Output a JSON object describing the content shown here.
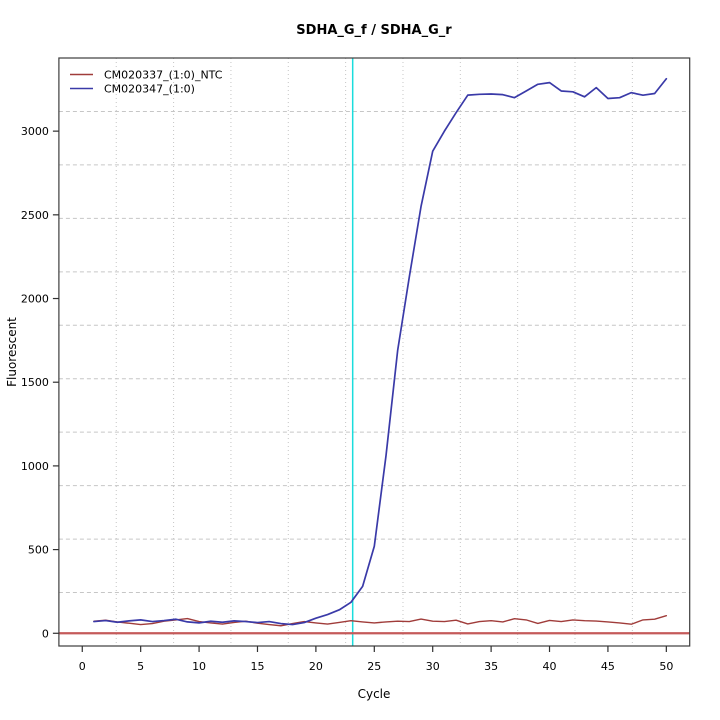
{
  "figure": {
    "background": "#ffffff",
    "box_color": "#3c3c3c",
    "tick_color": "#303030",
    "text_color": "#000000"
  },
  "chart_data": {
    "type": "line",
    "title": "SDHA_G_f / SDHA_G_r",
    "xlabel": "Cycle",
    "ylabel": "Fluorescent",
    "x_range": [
      -2,
      52
    ],
    "y_range": [
      -76,
      3437
    ],
    "x_ticks": [
      0,
      5,
      10,
      15,
      20,
      25,
      30,
      35,
      40,
      45,
      50
    ],
    "y_ticks": [
      0,
      500,
      1000,
      1500,
      2000,
      2500,
      3000
    ],
    "grid": {
      "color": "#c6c6c6",
      "x_lines": [
        2.909,
        7.818,
        12.727,
        17.636,
        22.545,
        27.455,
        32.364,
        37.273,
        42.182,
        47.091
      ],
      "y_lines": [
        243.4,
        562.7,
        882.1,
        1201.5,
        1520.8,
        1840.2,
        2159.5,
        2478.9,
        2798.3,
        3117.6
      ]
    },
    "threshold_line": {
      "x": 23.15,
      "color": "#1adddd"
    },
    "zero_line": {
      "y": 0,
      "color": "#c45a5a"
    },
    "legend_position": "top-left",
    "cycles": [
      1,
      2,
      3,
      4,
      5,
      6,
      7,
      8,
      9,
      10,
      11,
      12,
      13,
      14,
      15,
      16,
      17,
      18,
      19,
      20,
      21,
      22,
      23,
      24,
      25,
      26,
      27,
      28,
      29,
      30,
      31,
      32,
      33,
      34,
      35,
      36,
      37,
      38,
      39,
      40,
      41,
      42,
      43,
      44,
      45,
      46,
      47,
      48,
      49,
      50
    ],
    "series": [
      {
        "name": "CM020337_(1:0)_NTC",
        "color": "#a03c3a",
        "values": [
          72,
          78,
          68,
          60,
          52,
          58,
          72,
          80,
          88,
          70,
          62,
          55,
          65,
          72,
          60,
          52,
          45,
          58,
          70,
          62,
          55,
          65,
          75,
          68,
          62,
          68,
          72,
          70,
          85,
          72,
          70,
          78,
          56,
          70,
          75,
          68,
          87,
          80,
          59,
          77,
          70,
          80,
          75,
          73,
          68,
          62,
          54,
          80,
          84,
          105
        ]
      },
      {
        "name": "CM020347_(1:0)",
        "color": "#3a3aa8",
        "values": [
          70,
          76,
          66,
          74,
          80,
          70,
          76,
          84,
          68,
          62,
          72,
          66,
          74,
          70,
          64,
          70,
          58,
          52,
          64,
          90,
          112,
          140,
          185,
          280,
          520,
          1060,
          1690,
          2130,
          2550,
          2880,
          3000,
          3110,
          3215,
          3220,
          3222,
          3218,
          3200,
          3240,
          3280,
          3290,
          3240,
          3235,
          3205,
          3260,
          3195,
          3200,
          3230,
          3215,
          3225,
          3313
        ]
      }
    ]
  }
}
